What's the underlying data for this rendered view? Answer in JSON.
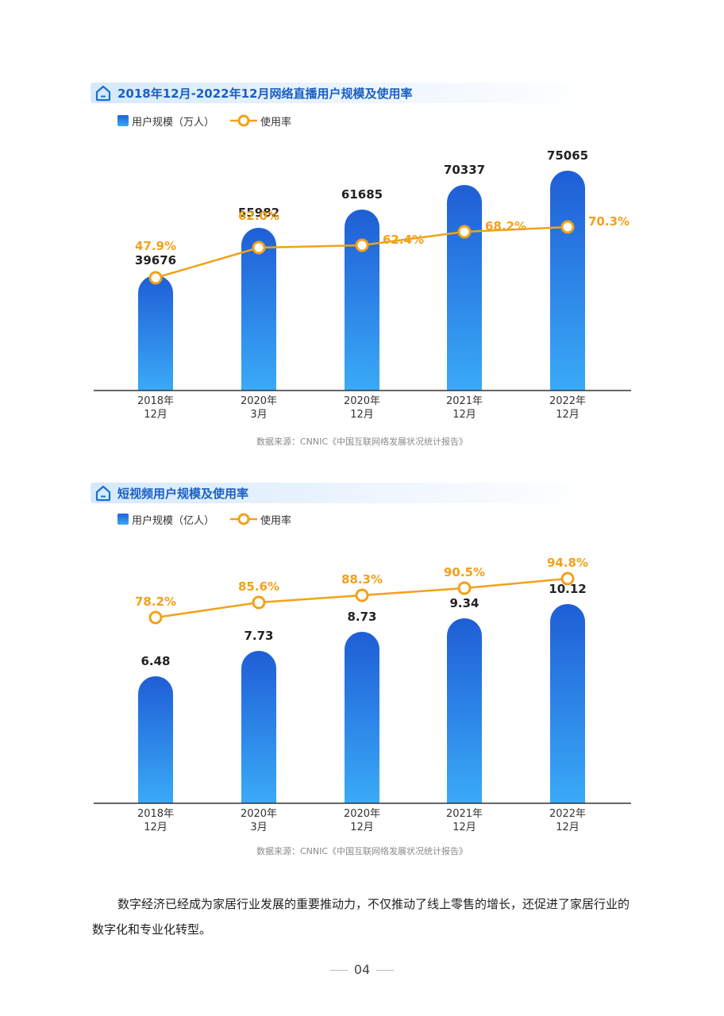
{
  "charts": [
    {
      "title": "2018年12月-2022年12月网络直播用户规模及使用率",
      "legend_bar": "用户规模（万人）",
      "legend_line": "使用率",
      "source": "数据来源：CNNIC《中国互联网络发展状况统计报告》"
    },
    {
      "title": "短视频用户规模及使用率",
      "legend_bar": "用户规模（亿人）",
      "legend_line": "使用率",
      "source": "数据来源：CNNIC《中国互联网络发展状况统计报告》"
    }
  ],
  "chart_data": [
    {
      "type": "bar",
      "title": "2018年12月-2022年12月网络直播用户规模及使用率",
      "categories": [
        [
          "2018年",
          "12月"
        ],
        [
          "2020年",
          "3月"
        ],
        [
          "2020年",
          "12月"
        ],
        [
          "2021年",
          "12月"
        ],
        [
          "2022年",
          "12月"
        ]
      ],
      "series": [
        {
          "name": "用户规模（万人）",
          "type": "bar",
          "values": [
            39676,
            55982,
            61685,
            70337,
            75065
          ],
          "labels": [
            "39676",
            "55982",
            "61685",
            "70337",
            "75065"
          ]
        },
        {
          "name": "使用率",
          "type": "line",
          "values": [
            47.9,
            62.0,
            62.4,
            68.2,
            70.3
          ],
          "labels": [
            "47.9%",
            "62.0%",
            "62.4%",
            "68.2%",
            "70.3%"
          ]
        }
      ],
      "colors": {
        "bar_top": "#1f5ed6",
        "bar_bottom": "#3aaaf7",
        "line": "#f2a11a",
        "axis": "#333333"
      }
    },
    {
      "type": "bar",
      "title": "短视频用户规模及使用率",
      "categories": [
        [
          "2018年",
          "12月"
        ],
        [
          "2020年",
          "3月"
        ],
        [
          "2020年",
          "12月"
        ],
        [
          "2021年",
          "12月"
        ],
        [
          "2022年",
          "12月"
        ]
      ],
      "series": [
        {
          "name": "用户规模（亿人）",
          "type": "bar",
          "values": [
            6.48,
            7.73,
            8.73,
            9.34,
            10.12
          ],
          "labels": [
            "6.48",
            "7.73",
            "8.73",
            "9.34",
            "10.12"
          ]
        },
        {
          "name": "使用率",
          "type": "line",
          "values": [
            78.2,
            85.6,
            88.3,
            90.5,
            94.8
          ],
          "labels": [
            "78.2%",
            "85.6%",
            "88.3%",
            "90.5%",
            "94.8%"
          ]
        }
      ],
      "colors": {
        "bar_top": "#1f5ed6",
        "bar_bottom": "#3aaaf7",
        "line": "#f2a11a",
        "axis": "#333333"
      }
    }
  ],
  "paragraph": "数字经济已经成为家居行业发展的重要推动力，不仅推动了线上零售的增长，还促进了家居行业的数字化和专业化转型。",
  "page_number": "04"
}
